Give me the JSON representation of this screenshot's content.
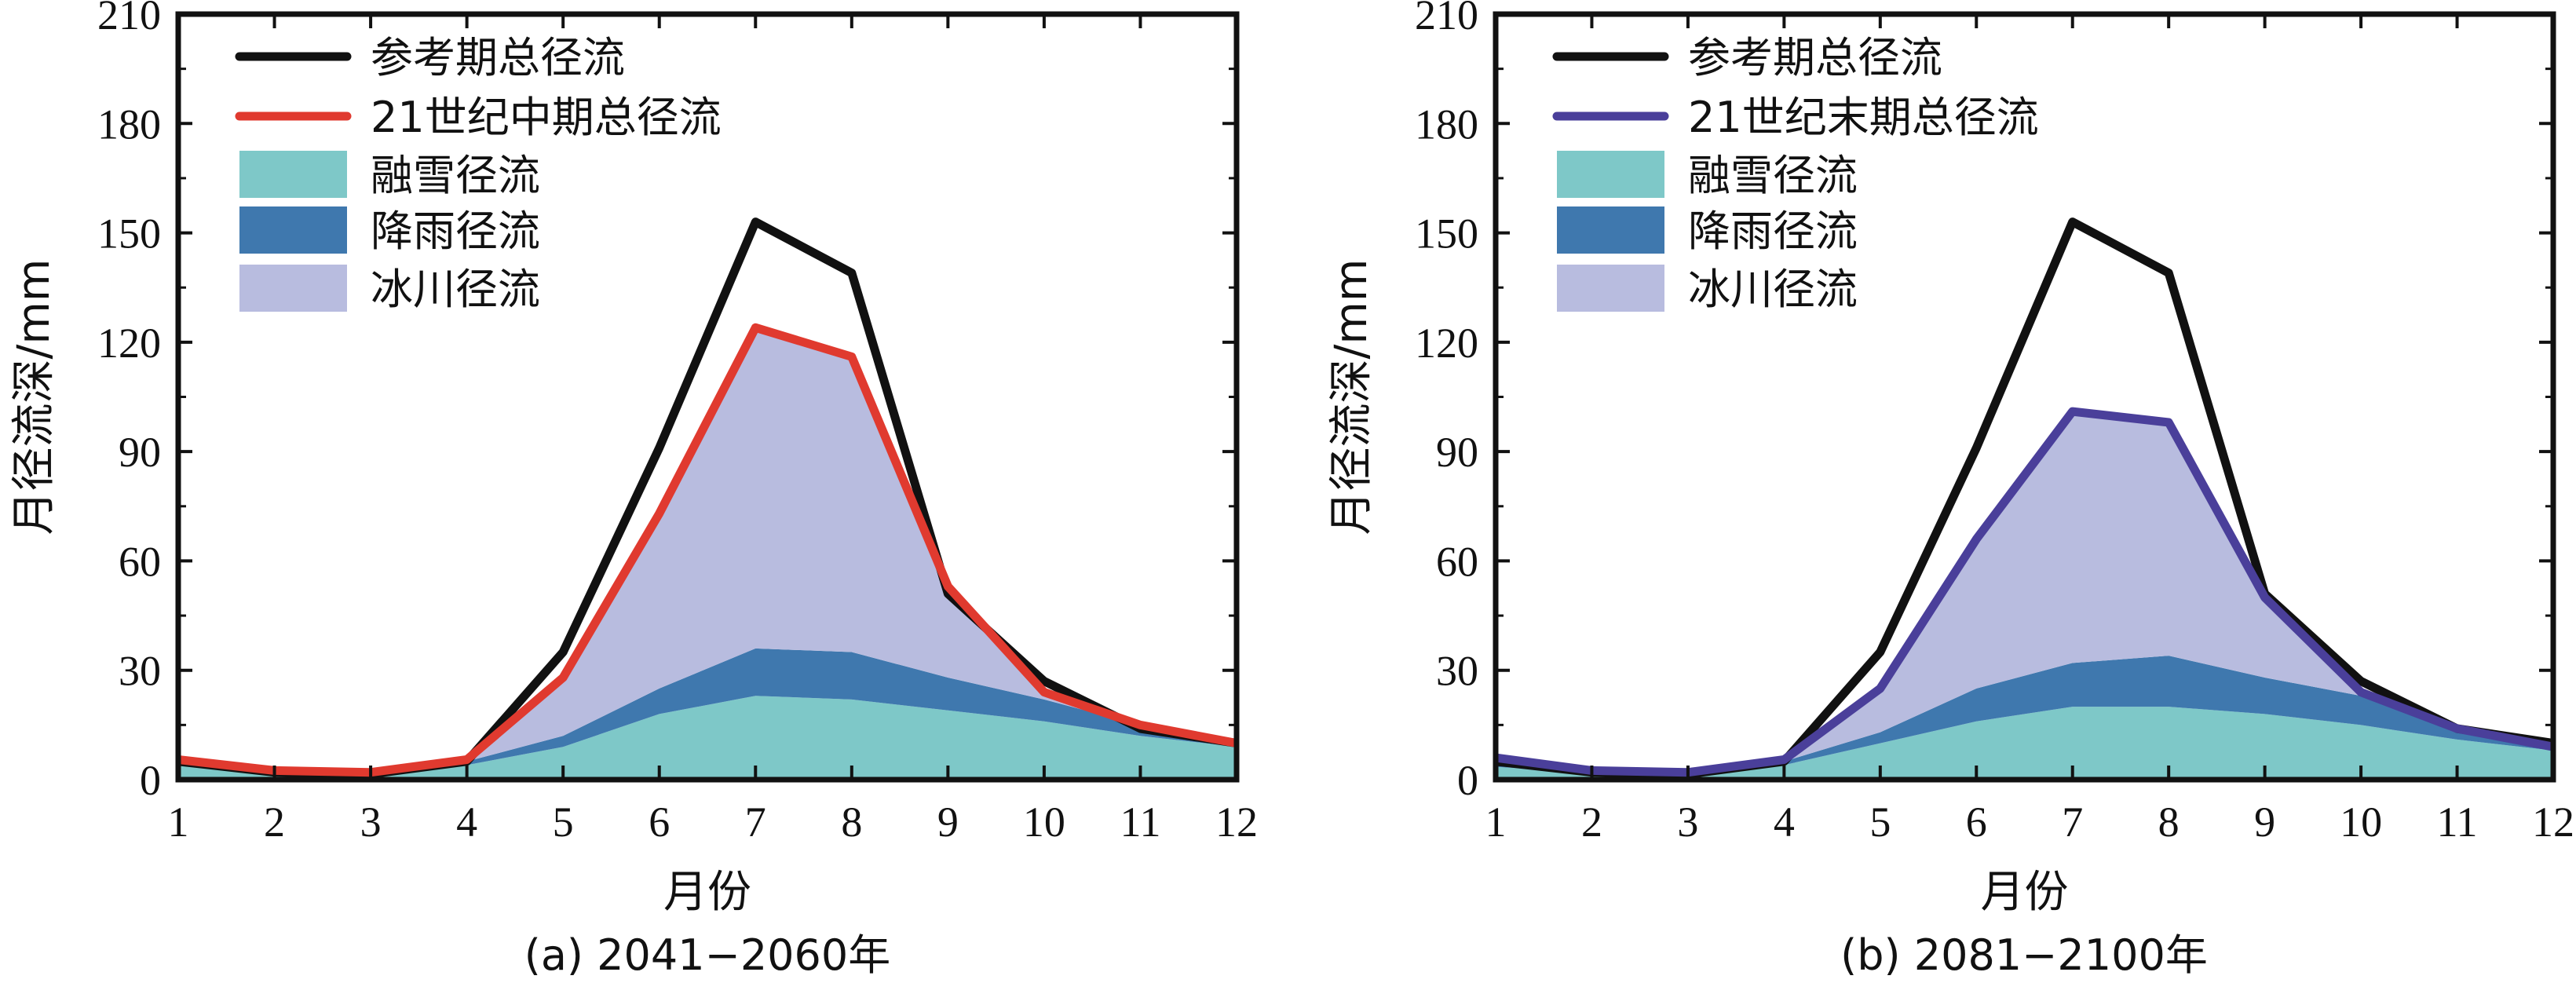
{
  "chart_data": [
    {
      "type": "area",
      "caption": "(a) 2041−2060年",
      "xlabel": "月份",
      "ylabel": "月径流深/mm",
      "xlim": [
        1,
        12
      ],
      "ylim": [
        0,
        210
      ],
      "x": [
        1,
        2,
        3,
        4,
        5,
        6,
        7,
        8,
        9,
        10,
        11,
        12
      ],
      "x_ticks": [
        "1",
        "2",
        "3",
        "4",
        "5",
        "6",
        "7",
        "8",
        "9",
        "10",
        "11",
        "12"
      ],
      "y_ticks": [
        "0",
        "30",
        "60",
        "90",
        "120",
        "150",
        "180",
        "210"
      ],
      "stacked_areas": [
        {
          "name": "融雪径流",
          "color": "#7ec8c8",
          "values": [
            4,
            2,
            1.5,
            4,
            9,
            18,
            23,
            22,
            19,
            16,
            12,
            9
          ]
        },
        {
          "name": "降雨径流",
          "color": "#3f78ae",
          "values": [
            1,
            0.5,
            0.5,
            1,
            3,
            7,
            13,
            13,
            9,
            6,
            3,
            1
          ]
        },
        {
          "name": "冰川径流",
          "color": "#b8bcdf",
          "values": [
            0.5,
            0,
            0,
            0.5,
            16,
            48,
            88,
            81,
            25,
            2,
            0,
            0
          ]
        }
      ],
      "lines": [
        {
          "name": "参考期总径流",
          "color": "#111111",
          "values": [
            5,
            2,
            1.5,
            5,
            35,
            91,
            153,
            139,
            51,
            27,
            14,
            10
          ]
        },
        {
          "name": "21世纪中期总径流",
          "color": "#e03a2f",
          "values": [
            5.5,
            2.5,
            2,
            5.5,
            28,
            73,
            124,
            116,
            53,
            24,
            15,
            10
          ]
        }
      ],
      "legend": [
        "参考期总径流",
        "21世纪中期总径流",
        "融雪径流",
        "降雨径流",
        "冰川径流"
      ],
      "legend_position": "top-left",
      "grid": false
    },
    {
      "type": "area",
      "caption": "(b) 2081−2100年",
      "xlabel": "月份",
      "ylabel": "月径流深/mm",
      "xlim": [
        1,
        12
      ],
      "ylim": [
        0,
        210
      ],
      "x": [
        1,
        2,
        3,
        4,
        5,
        6,
        7,
        8,
        9,
        10,
        11,
        12
      ],
      "x_ticks": [
        "1",
        "2",
        "3",
        "4",
        "5",
        "6",
        "7",
        "8",
        "9",
        "10",
        "11",
        "12"
      ],
      "y_ticks": [
        "0",
        "30",
        "60",
        "90",
        "120",
        "150",
        "180",
        "210"
      ],
      "stacked_areas": [
        {
          "name": "融雪径流",
          "color": "#7ec8c8",
          "values": [
            3.5,
            2,
            1.5,
            4,
            10,
            16,
            20,
            20,
            18,
            15,
            11,
            8
          ]
        },
        {
          "name": "降雨径流",
          "color": "#3f78ae",
          "values": [
            1,
            0.5,
            0.5,
            1,
            3,
            9,
            12,
            14,
            10,
            8,
            3,
            1
          ]
        },
        {
          "name": "冰川径流",
          "color": "#b8bcdf",
          "values": [
            1,
            0,
            0,
            0.5,
            12,
            41,
            69,
            64,
            22,
            2,
            0,
            0
          ]
        }
      ],
      "lines": [
        {
          "name": "参考期总径流",
          "color": "#111111",
          "values": [
            5,
            2,
            1.5,
            5,
            35,
            91,
            153,
            139,
            51,
            27,
            14,
            10
          ]
        },
        {
          "name": "21世纪末期总径流",
          "color": "#4a3f9a",
          "values": [
            6,
            2.5,
            2,
            5.5,
            25,
            66,
            101,
            98,
            50,
            24,
            14,
            9
          ]
        }
      ],
      "legend": [
        "参考期总径流",
        "21世纪末期总径流",
        "融雪径流",
        "降雨径流",
        "冰川径流"
      ],
      "legend_position": "top-left",
      "grid": false
    }
  ]
}
